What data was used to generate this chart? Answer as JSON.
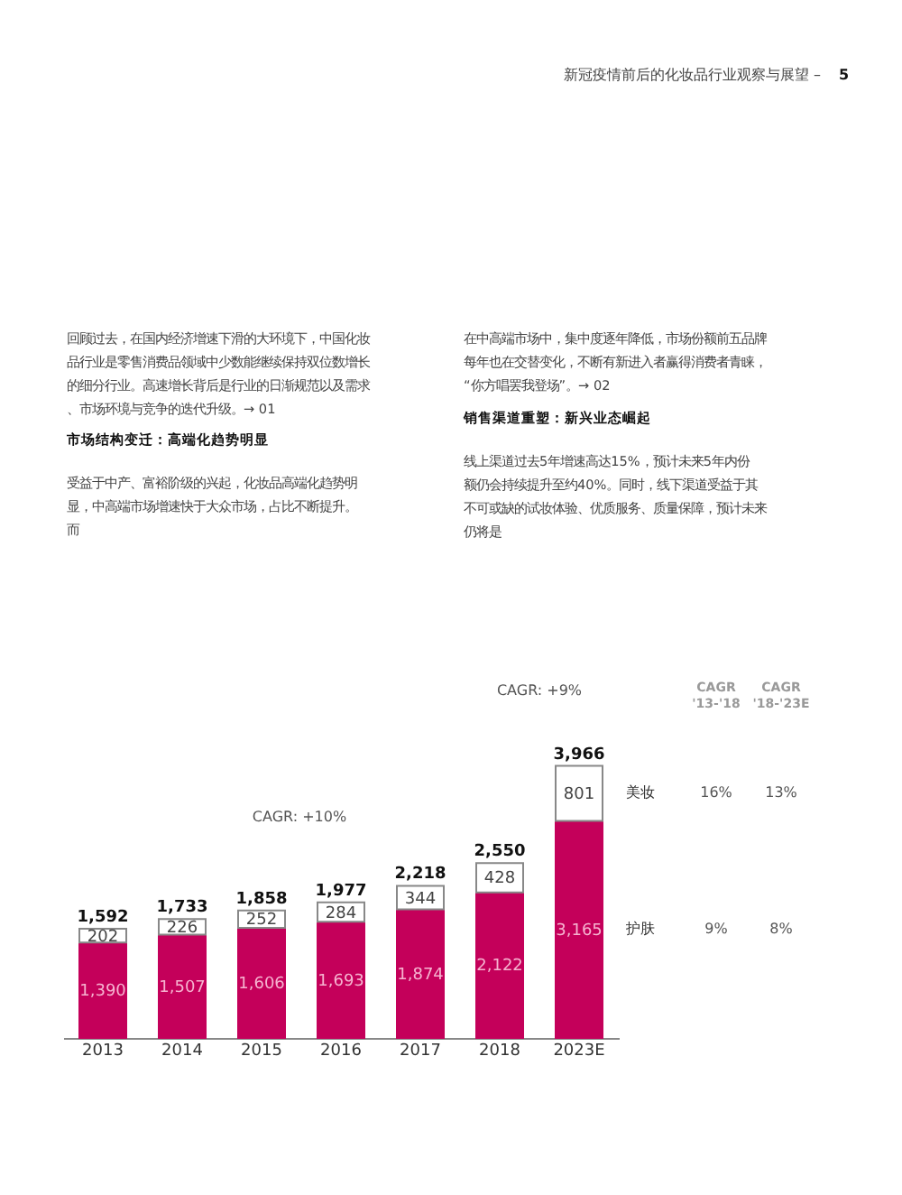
{
  "chart_data": {
    "type": "bar",
    "stacked": true,
    "categories": [
      "2013",
      "2014",
      "2015",
      "2016",
      "2017",
      "2018",
      "2023E"
    ],
    "series": [
      {
        "name": "护肤",
        "color": "#c4005a",
        "values": [
          1390,
          1507,
          1606,
          1693,
          1874,
          2122,
          3165
        ],
        "value_labels": [
          "1,390",
          "1,507",
          "1,606",
          "1,693",
          "1,874",
          "2,122",
          "3,165"
        ]
      },
      {
        "name": "美妆",
        "color": "#ffffff",
        "values": [
          202,
          226,
          252,
          284,
          344,
          428,
          801
        ],
        "value_labels": [
          "202",
          "226",
          "252",
          "284",
          "344",
          "428",
          "801"
        ]
      }
    ],
    "totals": [
      "1,592",
      "1,733",
      "1,858",
      "1,977",
      "2,218",
      "2,550",
      "3,966"
    ],
    "grid": false,
    "annotations": [
      "新冠疫情前后的化妆品行业观察与展望 –",
      "5",
      "回顾过去，在国内经济增速下滑的大环境下，中国化妆品行业是零售消费品领域中少数能继续保持双位数增长的细分行业。高速增长背后是行业的日渐规范以及需求、市场环境与竞争的迭代升级。→ 01",
      "市场结构变迁：高端化趋势明显",
      "受益于中产、富裕阶级的兴起，化妆品高端化趋势明显，中高端市场增速快于大众市场，占比不断提升。而",
      "在中高端市场中，集中度逐年降低，市场份额前五品牌每年也在交替变化，不断有新进入者赢得消费者青睐，“你方唱罢我登场”。→ 02",
      "销售渠道重塑：新兴业态崛起",
      "线上渠道过去5年增速高达15%，预计未来5年内份额仍会持续提升至约40%。同时，线下渠道受益于其不可或缺的试妆体验、优质服务、质量保障，预计未来仍将是",
      "CAGR: +10%",
      "CAGR: +9%",
      "CAGR\n'13-'18",
      "CAGR\n'18-'23E",
      "16%",
      "13%",
      "9%",
      "8%"
    ]
  }
}
